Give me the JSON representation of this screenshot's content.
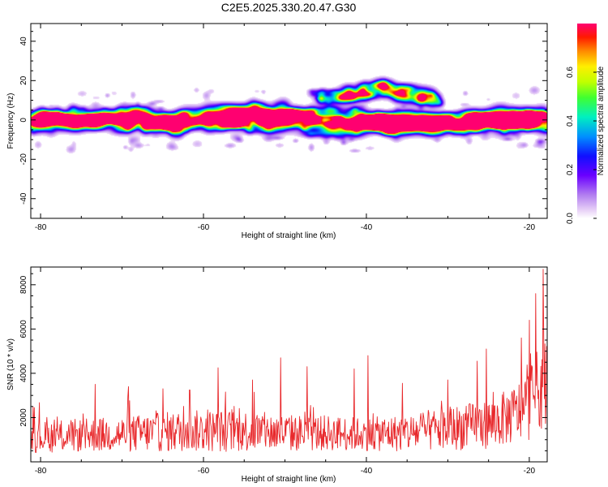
{
  "title": "C2E5.2025.330.20.47.G30",
  "chart_data": [
    {
      "type": "heatmap",
      "xlabel": "Height of straight line (km)",
      "ylabel": "Frequency (Hz)",
      "xlim": [
        -81.2,
        -17.8
      ],
      "ylim": [
        -50,
        49
      ],
      "xticks": [
        -80,
        -60,
        -40,
        -20
      ],
      "yticks": [
        -40,
        -20,
        0,
        20,
        40
      ],
      "band": {
        "description_points_x": [
          -82,
          -75,
          -70,
          -65,
          -60,
          -55,
          -50,
          -45,
          -40,
          -35,
          -30,
          -25,
          -20,
          -18
        ],
        "center_freq": [
          1,
          0,
          0,
          -1,
          1,
          2,
          1,
          0,
          -1,
          -2,
          -1,
          0,
          1,
          0
        ],
        "half_width": [
          5,
          5,
          6,
          6,
          6,
          7,
          7,
          6,
          5,
          5,
          5,
          5,
          5,
          5
        ],
        "upper_branch": {
          "x_range": [
            -46,
            -31
          ],
          "freq_range": [
            7,
            16
          ]
        }
      },
      "hotspots": [
        {
          "x": -79.5,
          "f": 2,
          "a": 0.5
        },
        {
          "x": -75.5,
          "f": 0,
          "a": 0.45
        },
        {
          "x": -73.8,
          "f": -1,
          "a": 0.4
        },
        {
          "x": -70.8,
          "f": 0,
          "a": 0.6
        },
        {
          "x": -68.2,
          "f": 5,
          "a": 0.4
        },
        {
          "x": -66.5,
          "f": -3,
          "a": 0.5
        },
        {
          "x": -60.5,
          "f": 1,
          "a": 0.4
        },
        {
          "x": -57.0,
          "f": 3,
          "a": 0.35
        },
        {
          "x": -52.0,
          "f": 2,
          "a": 0.4
        },
        {
          "x": -46.8,
          "f": 0,
          "a": 0.55
        },
        {
          "x": -44.0,
          "f": -2,
          "a": 0.4
        },
        {
          "x": -41.0,
          "f": -2,
          "a": 0.45
        },
        {
          "x": -38.5,
          "f": -2,
          "a": 0.65
        },
        {
          "x": -33.0,
          "f": -3,
          "a": 0.45
        },
        {
          "x": -27.5,
          "f": -2,
          "a": 0.6
        },
        {
          "x": -25.0,
          "f": 2,
          "a": 0.45
        },
        {
          "x": -21.8,
          "f": 2,
          "a": 0.8
        },
        {
          "x": -20.2,
          "f": 2,
          "a": 0.7
        },
        {
          "x": -19.8,
          "f": -3,
          "a": 0.55
        }
      ],
      "colorbar": {
        "label": "Normalized spectral amplitude",
        "range": [
          0.0,
          0.8
        ],
        "ticks": [
          "0.0",
          "0.2",
          "0.4",
          "0.6"
        ],
        "tick_values": [
          0.0,
          0.2,
          0.4,
          0.6
        ]
      }
    },
    {
      "type": "line",
      "color": "#e8282b",
      "xlabel": "Height of straight line (km)",
      "ylabel": "SNR (10 * v/v)",
      "xlim": [
        -81.2,
        -17.8
      ],
      "ylim": [
        0,
        8800
      ],
      "xticks": [
        -80,
        -60,
        -40,
        -20
      ],
      "yticks": [
        2000,
        4000,
        6000,
        8000
      ],
      "n_points": 900,
      "envelope": {
        "x": [
          -81.2,
          -75,
          -70,
          -65,
          -60,
          -55,
          -50,
          -45,
          -40,
          -35,
          -30,
          -25,
          -22,
          -20,
          -18.5,
          -17.8
        ],
        "baseline": [
          1100,
          1200,
          1250,
          1350,
          1400,
          1400,
          1300,
          1300,
          1250,
          1300,
          1500,
          1700,
          2100,
          2600,
          3500,
          4200
        ],
        "spread": [
          700,
          750,
          800,
          900,
          950,
          950,
          850,
          800,
          750,
          850,
          1000,
          1100,
          1300,
          1600,
          2000,
          2400
        ]
      },
      "peaks": [
        {
          "x": -80.8,
          "y": 2450
        },
        {
          "x": -73.3,
          "y": 3500
        },
        {
          "x": -69.2,
          "y": 3400
        },
        {
          "x": -65.0,
          "y": 3300
        },
        {
          "x": -61.7,
          "y": 3250
        },
        {
          "x": -58.2,
          "y": 4250
        },
        {
          "x": -54.0,
          "y": 3700
        },
        {
          "x": -50.5,
          "y": 4700
        },
        {
          "x": -47.3,
          "y": 4300
        },
        {
          "x": -41.5,
          "y": 4200
        },
        {
          "x": -39.8,
          "y": 4800
        },
        {
          "x": -35.6,
          "y": 3550
        },
        {
          "x": -30.0,
          "y": 3700
        },
        {
          "x": -26.4,
          "y": 4550
        },
        {
          "x": -25.3,
          "y": 5100
        },
        {
          "x": -21.0,
          "y": 5600
        },
        {
          "x": -20.0,
          "y": 6400
        },
        {
          "x": -19.2,
          "y": 7600
        },
        {
          "x": -18.3,
          "y": 8700
        }
      ]
    }
  ]
}
